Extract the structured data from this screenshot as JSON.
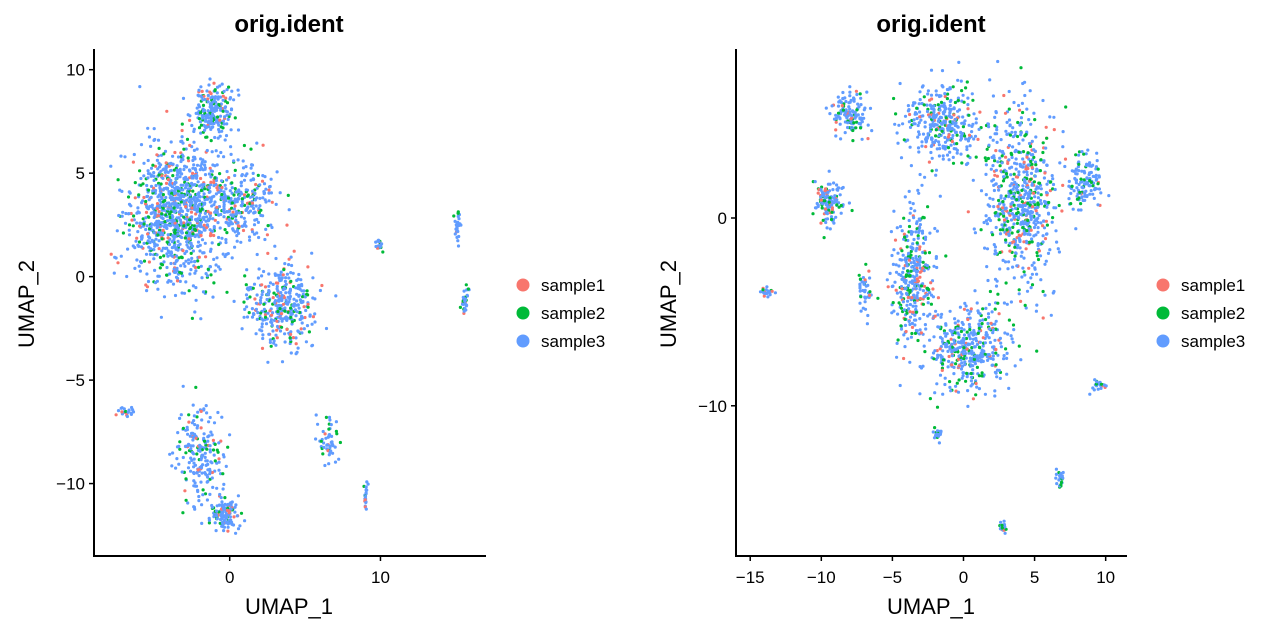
{
  "chart_data": [
    {
      "type": "scatter",
      "title": "orig.ident",
      "xlabel": "UMAP_1",
      "ylabel": "UMAP_2",
      "xlim": [
        -9,
        17
      ],
      "ylim": [
        -13.5,
        11
      ],
      "xticks": [
        0,
        10
      ],
      "yticks": [
        -10,
        -5,
        0,
        5,
        10
      ],
      "grid": false,
      "legend": {
        "position": "right",
        "entries": [
          "sample1",
          "sample2",
          "sample3"
        ],
        "colors": [
          "#F8766D",
          "#00BA38",
          "#619CFF"
        ]
      },
      "clusters": [
        {
          "x": -3.5,
          "y": 3.0,
          "sx": 2.8,
          "sy": 3.0,
          "w": 0.4
        },
        {
          "x": -1.2,
          "y": 8.0,
          "sx": 1.2,
          "sy": 1.2,
          "w": 0.08
        },
        {
          "x": 3.5,
          "y": -1.5,
          "sx": 2.0,
          "sy": 1.8,
          "w": 0.14
        },
        {
          "x": 0.5,
          "y": 3.5,
          "sx": 2.5,
          "sy": 1.8,
          "w": 0.12
        },
        {
          "x": -2.0,
          "y": -8.5,
          "sx": 1.4,
          "sy": 2.0,
          "w": 0.08
        },
        {
          "x": -0.3,
          "y": -11.5,
          "sx": 1.0,
          "sy": 0.7,
          "w": 0.05
        },
        {
          "x": 6.5,
          "y": -8.0,
          "sx": 0.6,
          "sy": 1.0,
          "w": 0.02
        },
        {
          "x": 15.1,
          "y": 2.5,
          "sx": 0.2,
          "sy": 0.8,
          "w": 0.012
        },
        {
          "x": 15.6,
          "y": -1.2,
          "sx": 0.25,
          "sy": 0.6,
          "w": 0.012
        },
        {
          "x": 9.0,
          "y": -10.5,
          "sx": 0.15,
          "sy": 0.7,
          "w": 0.006
        },
        {
          "x": -7.0,
          "y": -6.5,
          "sx": 0.6,
          "sy": 0.25,
          "w": 0.008
        },
        {
          "x": 9.9,
          "y": 1.6,
          "sx": 0.2,
          "sy": 0.3,
          "w": 0.004
        }
      ]
    },
    {
      "type": "scatter",
      "title": "orig.ident",
      "xlabel": "UMAP_1",
      "ylabel": "UMAP_2",
      "xlim": [
        -16,
        11.5
      ],
      "ylim": [
        -18,
        9
      ],
      "xticks": [
        -15,
        -10,
        -5,
        0,
        5,
        10
      ],
      "yticks": [
        -10,
        0
      ],
      "grid": false,
      "legend": {
        "position": "right",
        "entries": [
          "sample1",
          "sample2",
          "sample3"
        ],
        "colors": [
          "#F8766D",
          "#00BA38",
          "#619CFF"
        ]
      },
      "clusters": [
        {
          "x": 4.0,
          "y": 1.0,
          "sx": 2.2,
          "sy": 4.5,
          "w": 0.26
        },
        {
          "x": -1.5,
          "y": 5.0,
          "sx": 2.6,
          "sy": 1.8,
          "w": 0.14
        },
        {
          "x": -3.5,
          "y": -3.0,
          "sx": 1.4,
          "sy": 3.5,
          "w": 0.14
        },
        {
          "x": 0.5,
          "y": -7.0,
          "sx": 2.5,
          "sy": 2.2,
          "w": 0.16
        },
        {
          "x": -8.0,
          "y": 5.5,
          "sx": 1.1,
          "sy": 1.0,
          "w": 0.05
        },
        {
          "x": -9.5,
          "y": 0.8,
          "sx": 1.0,
          "sy": 1.1,
          "w": 0.05
        },
        {
          "x": 8.5,
          "y": 2.0,
          "sx": 1.0,
          "sy": 1.5,
          "w": 0.05
        },
        {
          "x": -7.0,
          "y": -4.0,
          "sx": 0.4,
          "sy": 1.3,
          "w": 0.015
        },
        {
          "x": -13.8,
          "y": -4.0,
          "sx": 0.5,
          "sy": 0.2,
          "w": 0.008
        },
        {
          "x": 9.5,
          "y": -8.9,
          "sx": 0.5,
          "sy": 0.2,
          "w": 0.007
        },
        {
          "x": 6.8,
          "y": -13.8,
          "sx": 0.2,
          "sy": 0.5,
          "w": 0.007
        },
        {
          "x": 2.8,
          "y": -16.5,
          "sx": 0.3,
          "sy": 0.3,
          "w": 0.006
        },
        {
          "x": -1.8,
          "y": -11.5,
          "sx": 0.3,
          "sy": 0.3,
          "w": 0.005
        }
      ]
    }
  ]
}
